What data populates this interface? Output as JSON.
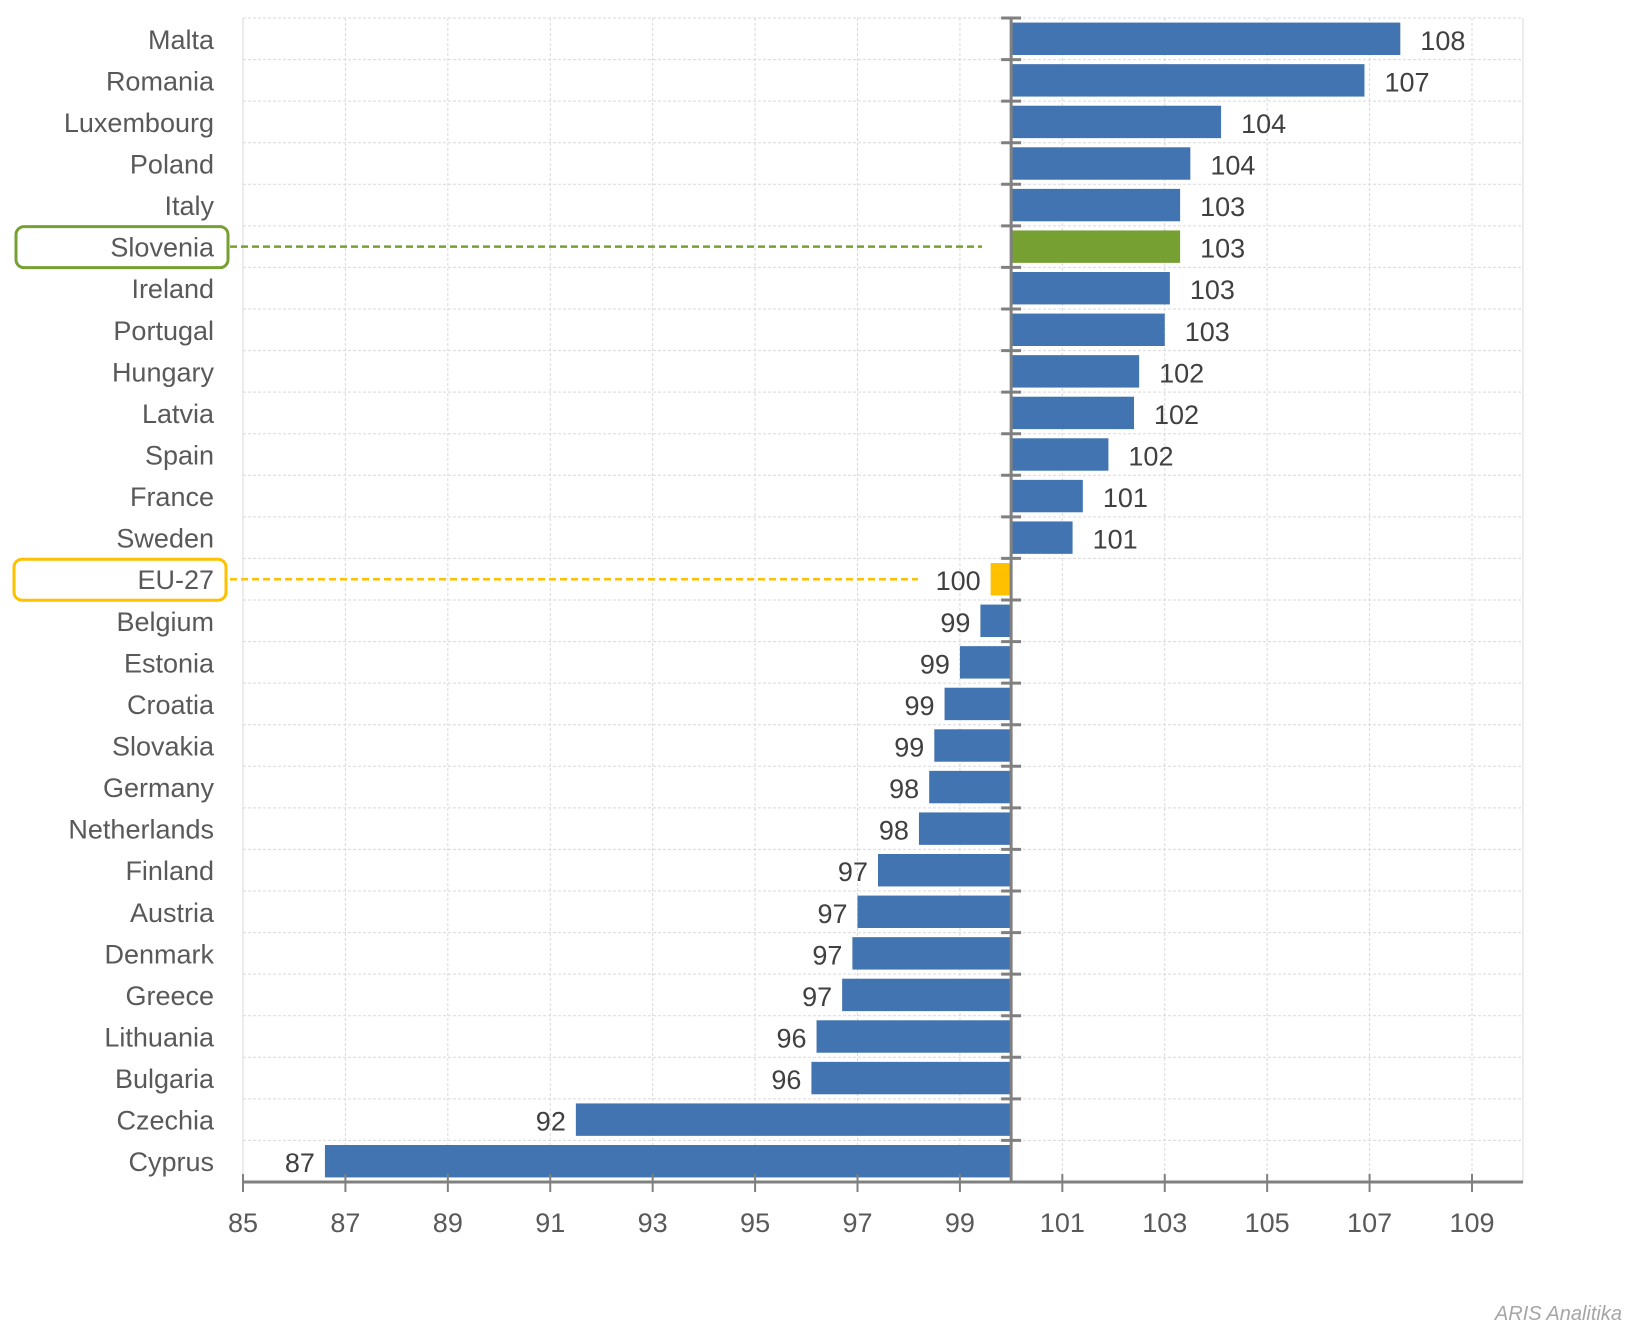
{
  "chart_data": {
    "type": "bar",
    "orientation": "horizontal",
    "baseline": 100,
    "xlim": [
      85,
      110
    ],
    "xticks": [
      85,
      87,
      89,
      91,
      93,
      95,
      97,
      99,
      101,
      103,
      105,
      107,
      109
    ],
    "grid": true,
    "legend": "none",
    "title": "",
    "xlabel": "",
    "ylabel": "",
    "colors": {
      "default": "#4174B1",
      "highlight_country": "#77A032",
      "highlight_eu": "#FFC000",
      "axis": "#808080",
      "grid": "#D9D9D9"
    },
    "categories": [
      "Malta",
      "Romania",
      "Luxembourg",
      "Poland",
      "Italy",
      "Slovenia",
      "Ireland",
      "Portugal",
      "Hungary",
      "Latvia",
      "Spain",
      "France",
      "Sweden",
      "EU-27",
      "Belgium",
      "Estonia",
      "Croatia",
      "Slovakia",
      "Germany",
      "Netherlands",
      "Finland",
      "Austria",
      "Denmark",
      "Greece",
      "Lithuania",
      "Bulgaria",
      "Czechia",
      "Cyprus"
    ],
    "values": [
      107.6,
      106.9,
      104.1,
      103.5,
      103.3,
      103.3,
      103.1,
      103.0,
      102.5,
      102.4,
      101.9,
      101.4,
      101.2,
      99.6,
      99.4,
      99.0,
      98.7,
      98.5,
      98.4,
      98.2,
      97.4,
      97.0,
      96.9,
      96.7,
      96.2,
      96.1,
      91.5,
      86.6
    ],
    "data_labels": [
      "108",
      "107",
      "104",
      "104",
      "103",
      "103",
      "103",
      "103",
      "102",
      "102",
      "102",
      "101",
      "101",
      "100",
      "99",
      "99",
      "99",
      "99",
      "98",
      "98",
      "97",
      "97",
      "97",
      "97",
      "96",
      "96",
      "92",
      "87"
    ],
    "highlights": {
      "Slovenia": "highlight_country",
      "EU-27": "highlight_eu"
    }
  },
  "watermark": "ARIS Analitika"
}
